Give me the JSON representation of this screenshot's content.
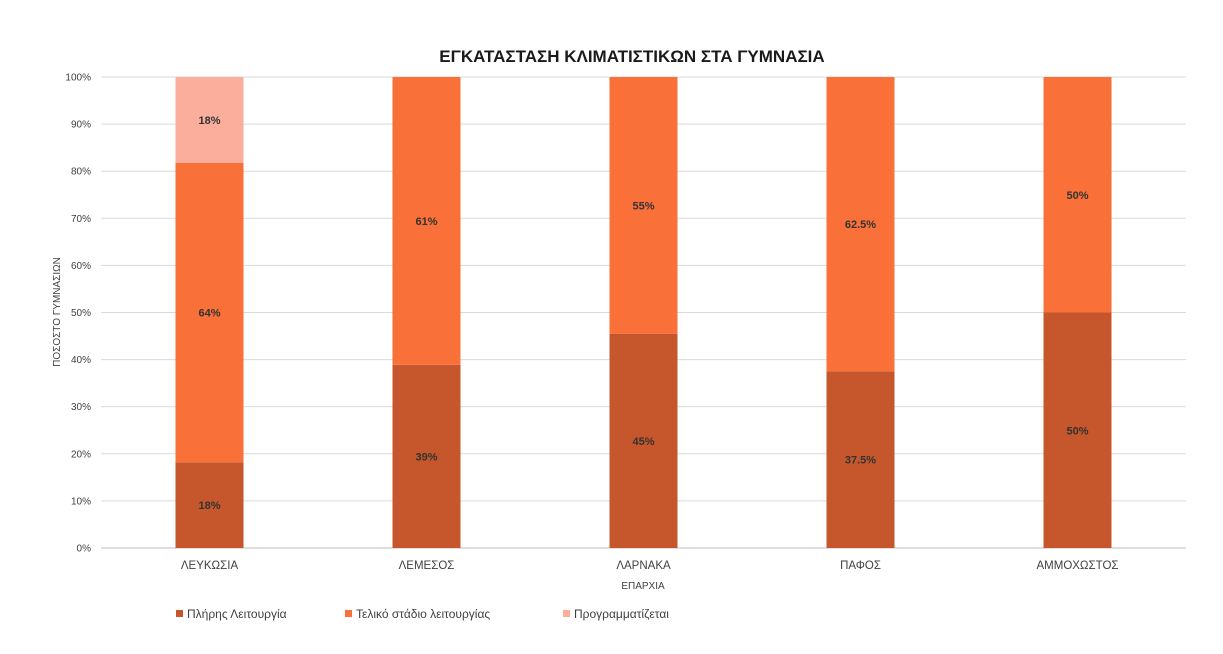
{
  "chart_data": {
    "type": "bar",
    "stacked": "percent",
    "title": "ΕΓΚΑΤΑΣΤΑΣΗ ΚΛΙΜΑΤΙΣΤΙΚΩΝ ΣΤΑ ΓΥΜΝΑΣΙΑ",
    "xlabel": "ΕΠΑΡΧΙΑ",
    "ylabel": "ΠΟΣΟΣΤΟ ΓΥΜΝΑΣΙΩΝ",
    "categories": [
      "ΛΕΥΚΩΣΙΑ",
      "ΛΕΜΕΣΟΣ",
      "ΛΑΡΝΑΚΑ",
      "ΠΑΦΟΣ",
      "ΑΜΜΟΧΩΣΤΟΣ"
    ],
    "ylim": [
      0,
      100
    ],
    "yticks": [
      "0%",
      "10%",
      "20%",
      "30%",
      "40%",
      "50%",
      "60%",
      "70%",
      "80%",
      "90%",
      "100%"
    ],
    "grid": true,
    "legend_position": "bottom-left",
    "series": [
      {
        "name": "Πλήρης Λειτουργία",
        "color": "#C6562B",
        "values": [
          18.2,
          38.9,
          45.5,
          37.5,
          50
        ],
        "labels": [
          "18%",
          "39%",
          "45%",
          "37.5%",
          "50%"
        ]
      },
      {
        "name": "Τελικό στάδιο λειτουργίας",
        "color": "#F97038",
        "values": [
          63.6,
          61.1,
          54.5,
          62.5,
          50
        ],
        "labels": [
          "64%",
          "61%",
          "55%",
          "62.5%",
          "50%"
        ]
      },
      {
        "name": "Προγραμματίζεται",
        "color": "#FBAE9B",
        "values": [
          18.2,
          0,
          0,
          0,
          0
        ],
        "labels": [
          "18%",
          "",
          "",
          "",
          ""
        ]
      }
    ]
  }
}
